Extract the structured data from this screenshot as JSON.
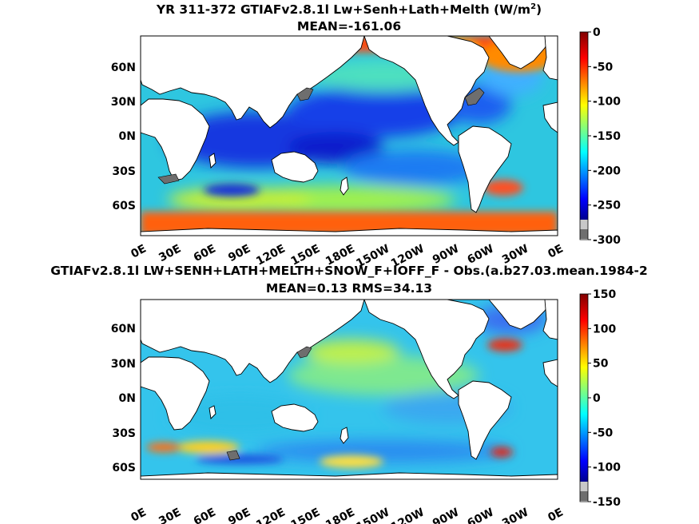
{
  "chart_data": [
    {
      "type": "heatmap",
      "title": "YR 311-372 GTIAFv2.8.1l Lw+Senh+Lath+Melth (W/m",
      "title_sup": "2",
      "title_tail": ")",
      "subtitle": "MEAN=-161.06",
      "x_ticks": [
        "0E",
        "30E",
        "60E",
        "90E",
        "120E",
        "150E",
        "180E",
        "150W",
        "120W",
        "90W",
        "60W",
        "30W",
        "0E"
      ],
      "y_ticks": [
        "60N",
        "30N",
        "0N",
        "30S",
        "60S"
      ],
      "colorbar_ticks": [
        "0",
        "-50",
        "-100",
        "-150",
        "-200",
        "-250",
        "-300"
      ],
      "colorbar_range": [
        -300,
        0
      ],
      "mean": -161.06,
      "colormap": "jet"
    },
    {
      "type": "heatmap",
      "title": "GTIAFv2.8.1l LW+SENH+LATH+MELTH+SNOW_F+IOFF_F - Obs.(a.b27.03.mean.1984-2",
      "subtitle": "MEAN=0.13 RMS=34.13",
      "x_ticks": [
        "0E",
        "30E",
        "60E",
        "90E",
        "120E",
        "150E",
        "180E",
        "150W",
        "120W",
        "90W",
        "60W",
        "30W",
        "0E"
      ],
      "y_ticks": [
        "60N",
        "30N",
        "0N",
        "30S",
        "60S"
      ],
      "colorbar_ticks": [
        "150",
        "100",
        "50",
        "0",
        "-50",
        "-100",
        "-150"
      ],
      "colorbar_range": [
        -150,
        150
      ],
      "mean": 0.13,
      "rms": 34.13,
      "colormap": "jet"
    }
  ],
  "colors": {
    "land": "#ffffff",
    "missing": "#6e6e6e",
    "outline": "#000000"
  }
}
